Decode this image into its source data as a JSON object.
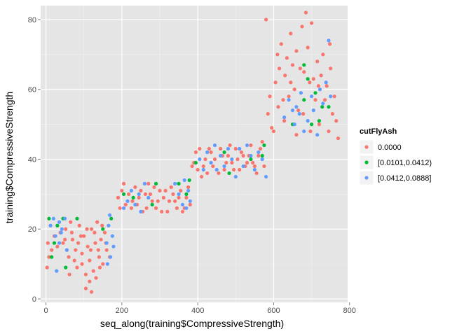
{
  "chart_data": {
    "type": "scatter",
    "title": "",
    "xlabel": "seq_along(training$CompressiveStrength)",
    "ylabel": "training$CompressiveStrength",
    "xlim": [
      -14,
      795
    ],
    "ylim": [
      -1,
      84
    ],
    "x_ticks": [
      0,
      200,
      400,
      600,
      800
    ],
    "y_ticks": [
      0,
      20,
      40,
      60,
      80
    ],
    "grid": true,
    "legend": {
      "title": "cutFlyAsh",
      "placement": "right",
      "entries": [
        {
          "label": "0.0000",
          "color": "#F8766D"
        },
        {
          "label": "[0.0101,0.0412)",
          "color": "#00BA38"
        },
        {
          "label": "[0.0412,0.0888]",
          "color": "#619CFF"
        }
      ]
    },
    "series": [
      {
        "name": "0.0000",
        "color": "#F8766D",
        "points": [
          [
            3,
            9
          ],
          [
            8,
            12
          ],
          [
            15,
            14
          ],
          [
            22,
            18
          ],
          [
            30,
            15
          ],
          [
            38,
            19
          ],
          [
            45,
            16
          ],
          [
            52,
            20
          ],
          [
            60,
            12
          ],
          [
            65,
            22
          ],
          [
            70,
            17
          ],
          [
            78,
            14
          ],
          [
            82,
            9
          ],
          [
            88,
            21
          ],
          [
            95,
            13
          ],
          [
            100,
            18
          ],
          [
            105,
            7
          ],
          [
            110,
            15
          ],
          [
            115,
            11
          ],
          [
            120,
            20
          ],
          [
            125,
            8
          ],
          [
            130,
            16
          ],
          [
            135,
            22
          ],
          [
            140,
            12
          ],
          [
            145,
            17
          ],
          [
            150,
            10
          ],
          [
            155,
            19
          ],
          [
            160,
            14
          ],
          [
            105,
            3
          ],
          [
            115,
            5
          ],
          [
            120,
            2
          ],
          [
            95,
            10
          ],
          [
            85,
            16
          ],
          [
            75,
            11
          ],
          [
            68,
            19
          ],
          [
            62,
            7
          ],
          [
            55,
            14
          ],
          [
            128,
            19
          ],
          [
            138,
            14
          ],
          [
            148,
            21
          ],
          [
            158,
            16
          ],
          [
            168,
            12
          ],
          [
            50,
            17
          ],
          [
            108,
            20
          ],
          [
            132,
            6
          ],
          [
            142,
            9
          ],
          [
            5,
            16
          ],
          [
            92,
            18
          ],
          [
            118,
            14
          ],
          [
            190,
            29
          ],
          [
            200,
            31
          ],
          [
            210,
            27
          ],
          [
            225,
            26
          ],
          [
            235,
            32
          ],
          [
            245,
            29
          ],
          [
            255,
            25
          ],
          [
            262,
            30
          ],
          [
            270,
            33
          ],
          [
            280,
            28
          ],
          [
            290,
            26
          ],
          [
            300,
            31
          ],
          [
            310,
            29
          ],
          [
            320,
            25
          ],
          [
            330,
            32
          ],
          [
            340,
            28
          ],
          [
            345,
            26
          ],
          [
            355,
            31
          ],
          [
            360,
            25
          ],
          [
            370,
            29
          ],
          [
            380,
            27
          ],
          [
            195,
            26
          ],
          [
            205,
            33
          ],
          [
            218,
            30
          ],
          [
            228,
            28
          ],
          [
            240,
            27
          ],
          [
            250,
            31
          ],
          [
            265,
            26
          ],
          [
            275,
            30
          ],
          [
            285,
            32
          ],
          [
            295,
            28
          ],
          [
            305,
            25
          ],
          [
            315,
            31
          ],
          [
            325,
            28
          ],
          [
            335,
            30
          ],
          [
            350,
            29
          ],
          [
            365,
            26
          ],
          [
            375,
            32
          ],
          [
            385,
            38
          ],
          [
            395,
            42
          ],
          [
            400,
            37
          ],
          [
            410,
            35
          ],
          [
            420,
            40
          ],
          [
            430,
            43
          ],
          [
            440,
            38
          ],
          [
            455,
            36
          ],
          [
            465,
            41
          ],
          [
            475,
            39
          ],
          [
            485,
            44
          ],
          [
            495,
            37
          ],
          [
            505,
            40
          ],
          [
            515,
            42
          ],
          [
            525,
            38
          ],
          [
            535,
            41
          ],
          [
            545,
            39
          ],
          [
            555,
            36
          ],
          [
            565,
            43
          ],
          [
            575,
            38
          ],
          [
            390,
            39
          ],
          [
            405,
            43
          ],
          [
            415,
            38
          ],
          [
            425,
            36
          ],
          [
            435,
            42
          ],
          [
            445,
            40
          ],
          [
            460,
            43
          ],
          [
            470,
            37
          ],
          [
            480,
            41
          ],
          [
            490,
            39
          ],
          [
            500,
            43
          ],
          [
            510,
            37
          ],
          [
            520,
            41
          ],
          [
            530,
            39
          ],
          [
            540,
            44
          ],
          [
            550,
            38
          ],
          [
            560,
            41
          ],
          [
            570,
            45
          ],
          [
            580,
            80
          ],
          [
            590,
            58
          ],
          [
            600,
            48
          ],
          [
            605,
            62
          ],
          [
            610,
            70
          ],
          [
            615,
            66
          ],
          [
            620,
            73
          ],
          [
            625,
            57
          ],
          [
            630,
            64
          ],
          [
            635,
            69
          ],
          [
            640,
            58
          ],
          [
            645,
            76
          ],
          [
            650,
            67
          ],
          [
            655,
            60
          ],
          [
            660,
            71
          ],
          [
            665,
            54
          ],
          [
            670,
            66
          ],
          [
            675,
            78
          ],
          [
            680,
            65
          ],
          [
            685,
            82
          ],
          [
            690,
            72
          ],
          [
            695,
            62
          ],
          [
            700,
            79
          ],
          [
            705,
            63
          ],
          [
            710,
            57
          ],
          [
            715,
            68
          ],
          [
            720,
            50
          ],
          [
            725,
            64
          ],
          [
            730,
            70
          ],
          [
            735,
            57
          ],
          [
            740,
            61
          ],
          [
            745,
            48
          ],
          [
            750,
            66
          ],
          [
            755,
            53
          ],
          [
            760,
            58
          ],
          [
            765,
            51
          ],
          [
            770,
            46
          ],
          [
            585,
            53
          ],
          [
            595,
            49
          ],
          [
            612,
            55
          ],
          [
            628,
            51
          ],
          [
            645,
            62
          ],
          [
            660,
            47
          ],
          [
            678,
            53
          ],
          [
            697,
            48
          ],
          [
            718,
            61
          ],
          [
            748,
            73
          ]
        ]
      },
      {
        "name": "[0.0101,0.0412)",
        "color": "#00BA38",
        "points": [
          [
            8,
            23
          ],
          [
            15,
            12
          ],
          [
            22,
            16
          ],
          [
            30,
            21
          ],
          [
            45,
            23
          ],
          [
            52,
            9
          ],
          [
            82,
            23
          ],
          [
            150,
            20
          ],
          [
            172,
            23
          ],
          [
            205,
            30
          ],
          [
            230,
            29
          ],
          [
            280,
            27
          ],
          [
            290,
            33
          ],
          [
            350,
            33
          ],
          [
            370,
            30
          ],
          [
            378,
            34
          ],
          [
            395,
            39
          ],
          [
            470,
            42
          ],
          [
            483,
            36
          ],
          [
            540,
            40
          ],
          [
            570,
            41
          ],
          [
            575,
            44
          ],
          [
            650,
            50
          ],
          [
            680,
            57
          ],
          [
            690,
            63
          ],
          [
            700,
            50
          ],
          [
            710,
            59
          ],
          [
            720,
            51
          ],
          [
            728,
            55
          ],
          [
            680,
            67
          ],
          [
            745,
            55
          ]
        ]
      },
      {
        "name": "[0.0412,0.0888]",
        "color": "#619CFF",
        "points": [
          [
            12,
            21
          ],
          [
            20,
            23
          ],
          [
            25,
            18
          ],
          [
            35,
            22
          ],
          [
            40,
            19
          ],
          [
            50,
            23
          ],
          [
            55,
            14
          ],
          [
            28,
            8
          ],
          [
            35,
            16
          ],
          [
            42,
            20
          ],
          [
            160,
            16
          ],
          [
            165,
            21
          ],
          [
            170,
            12
          ],
          [
            175,
            18
          ],
          [
            178,
            15
          ],
          [
            162,
            10
          ],
          [
            168,
            24
          ],
          [
            205,
            26
          ],
          [
            215,
            28
          ],
          [
            225,
            31
          ],
          [
            235,
            27
          ],
          [
            245,
            30
          ],
          [
            250,
            25
          ],
          [
            260,
            33
          ],
          [
            270,
            29
          ],
          [
            340,
            33
          ],
          [
            350,
            30
          ],
          [
            360,
            27
          ],
          [
            365,
            34
          ],
          [
            370,
            26
          ],
          [
            375,
            31
          ],
          [
            380,
            28
          ],
          [
            405,
            40
          ],
          [
            415,
            37
          ],
          [
            425,
            42
          ],
          [
            435,
            39
          ],
          [
            445,
            44
          ],
          [
            450,
            37
          ],
          [
            460,
            41
          ],
          [
            470,
            38
          ],
          [
            480,
            43
          ],
          [
            490,
            40
          ],
          [
            500,
            35
          ],
          [
            510,
            43
          ],
          [
            520,
            38
          ],
          [
            530,
            44
          ],
          [
            540,
            41
          ],
          [
            550,
            37
          ],
          [
            560,
            42
          ],
          [
            570,
            40
          ],
          [
            580,
            35
          ],
          [
            628,
            52
          ],
          [
            640,
            57
          ],
          [
            650,
            54
          ],
          [
            655,
            50
          ],
          [
            660,
            55
          ],
          [
            668,
            53
          ],
          [
            672,
            59
          ],
          [
            680,
            48
          ],
          [
            690,
            51
          ],
          [
            700,
            58
          ],
          [
            705,
            54
          ],
          [
            715,
            47
          ],
          [
            722,
            60
          ],
          [
            730,
            56
          ],
          [
            738,
            62
          ],
          [
            745,
            74
          ],
          [
            750,
            58
          ]
        ]
      }
    ]
  }
}
